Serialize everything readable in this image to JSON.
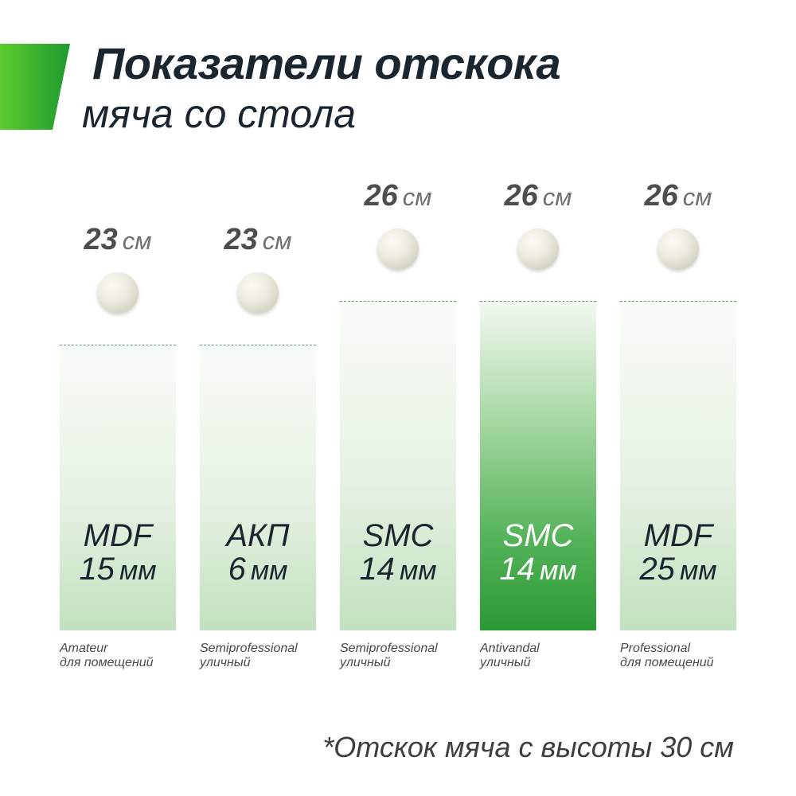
{
  "header": {
    "title_line1": "Показатели отскока",
    "title_line2": "мяча со стола"
  },
  "colors": {
    "accent_start": "#5ccc2e",
    "accent_end": "#1d9a2e",
    "title": "#1b2530",
    "value_text": "#4d4d4d",
    "highlight_bar": "#2e9e3a"
  },
  "chart_data": {
    "type": "bar",
    "unit": "см",
    "drop_height": 30,
    "categories": [
      "MDF 15 мм",
      "АКП 6 мм",
      "SMC 14 мм",
      "SMC 14 мм",
      "MDF 25 мм"
    ],
    "values": [
      23,
      23,
      26,
      26,
      26
    ],
    "columns": [
      {
        "value": 23,
        "unit": "см",
        "material": "MDF",
        "thickness": "15",
        "thickness_unit": "мм",
        "class": "Amateur",
        "usage": "для помещений",
        "highlight": false
      },
      {
        "value": 23,
        "unit": "см",
        "material": "АКП",
        "thickness": "6",
        "thickness_unit": "мм",
        "class": "Semiprofessional",
        "usage": "уличный",
        "highlight": false
      },
      {
        "value": 26,
        "unit": "см",
        "material": "SMC",
        "thickness": "14",
        "thickness_unit": "мм",
        "class": "Semiprofessional",
        "usage": "уличный",
        "highlight": false
      },
      {
        "value": 26,
        "unit": "см",
        "material": "SMC",
        "thickness": "14",
        "thickness_unit": "мм",
        "class": "Antivandal",
        "usage": "уличный",
        "highlight": true
      },
      {
        "value": 26,
        "unit": "см",
        "material": "MDF",
        "thickness": "25",
        "thickness_unit": "мм",
        "class": "Professional",
        "usage": "для помещений",
        "highlight": false
      }
    ],
    "footnote": "*Отскок мяча с высоты 30 см"
  }
}
